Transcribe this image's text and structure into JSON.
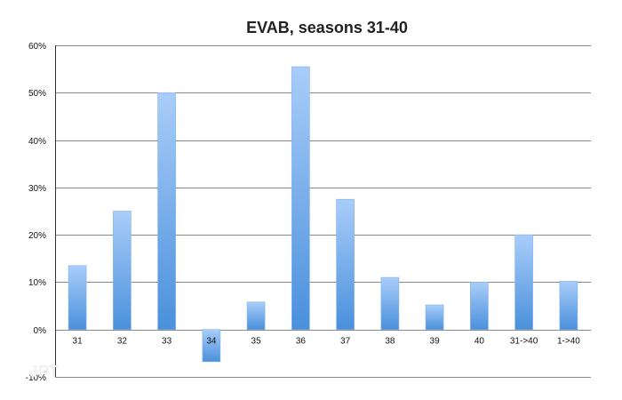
{
  "chart_data": {
    "type": "bar",
    "title": "EVAB, seasons 31-40",
    "xlabel": "",
    "ylabel": "",
    "categories": [
      "31",
      "32",
      "33",
      "34",
      "35",
      "36",
      "37",
      "38",
      "39",
      "40",
      "31->40",
      "1->40"
    ],
    "values": [
      0.135,
      0.25,
      0.5,
      -0.068,
      0.058,
      0.555,
      0.275,
      0.11,
      0.052,
      0.1,
      0.2,
      0.102
    ],
    "ylim": [
      -0.1,
      0.6
    ],
    "yticks": [
      -0.1,
      0.0,
      0.1,
      0.2,
      0.3,
      0.4,
      0.5,
      0.6
    ],
    "ytick_labels": [
      "-10%",
      "0%",
      "10%",
      "20%",
      "30%",
      "40%",
      "50%",
      "60%"
    ],
    "grid": true,
    "legend": "none",
    "bar_gradient": [
      "#a9cdf9",
      "#4a90dc"
    ]
  },
  "watermark": "JPT"
}
